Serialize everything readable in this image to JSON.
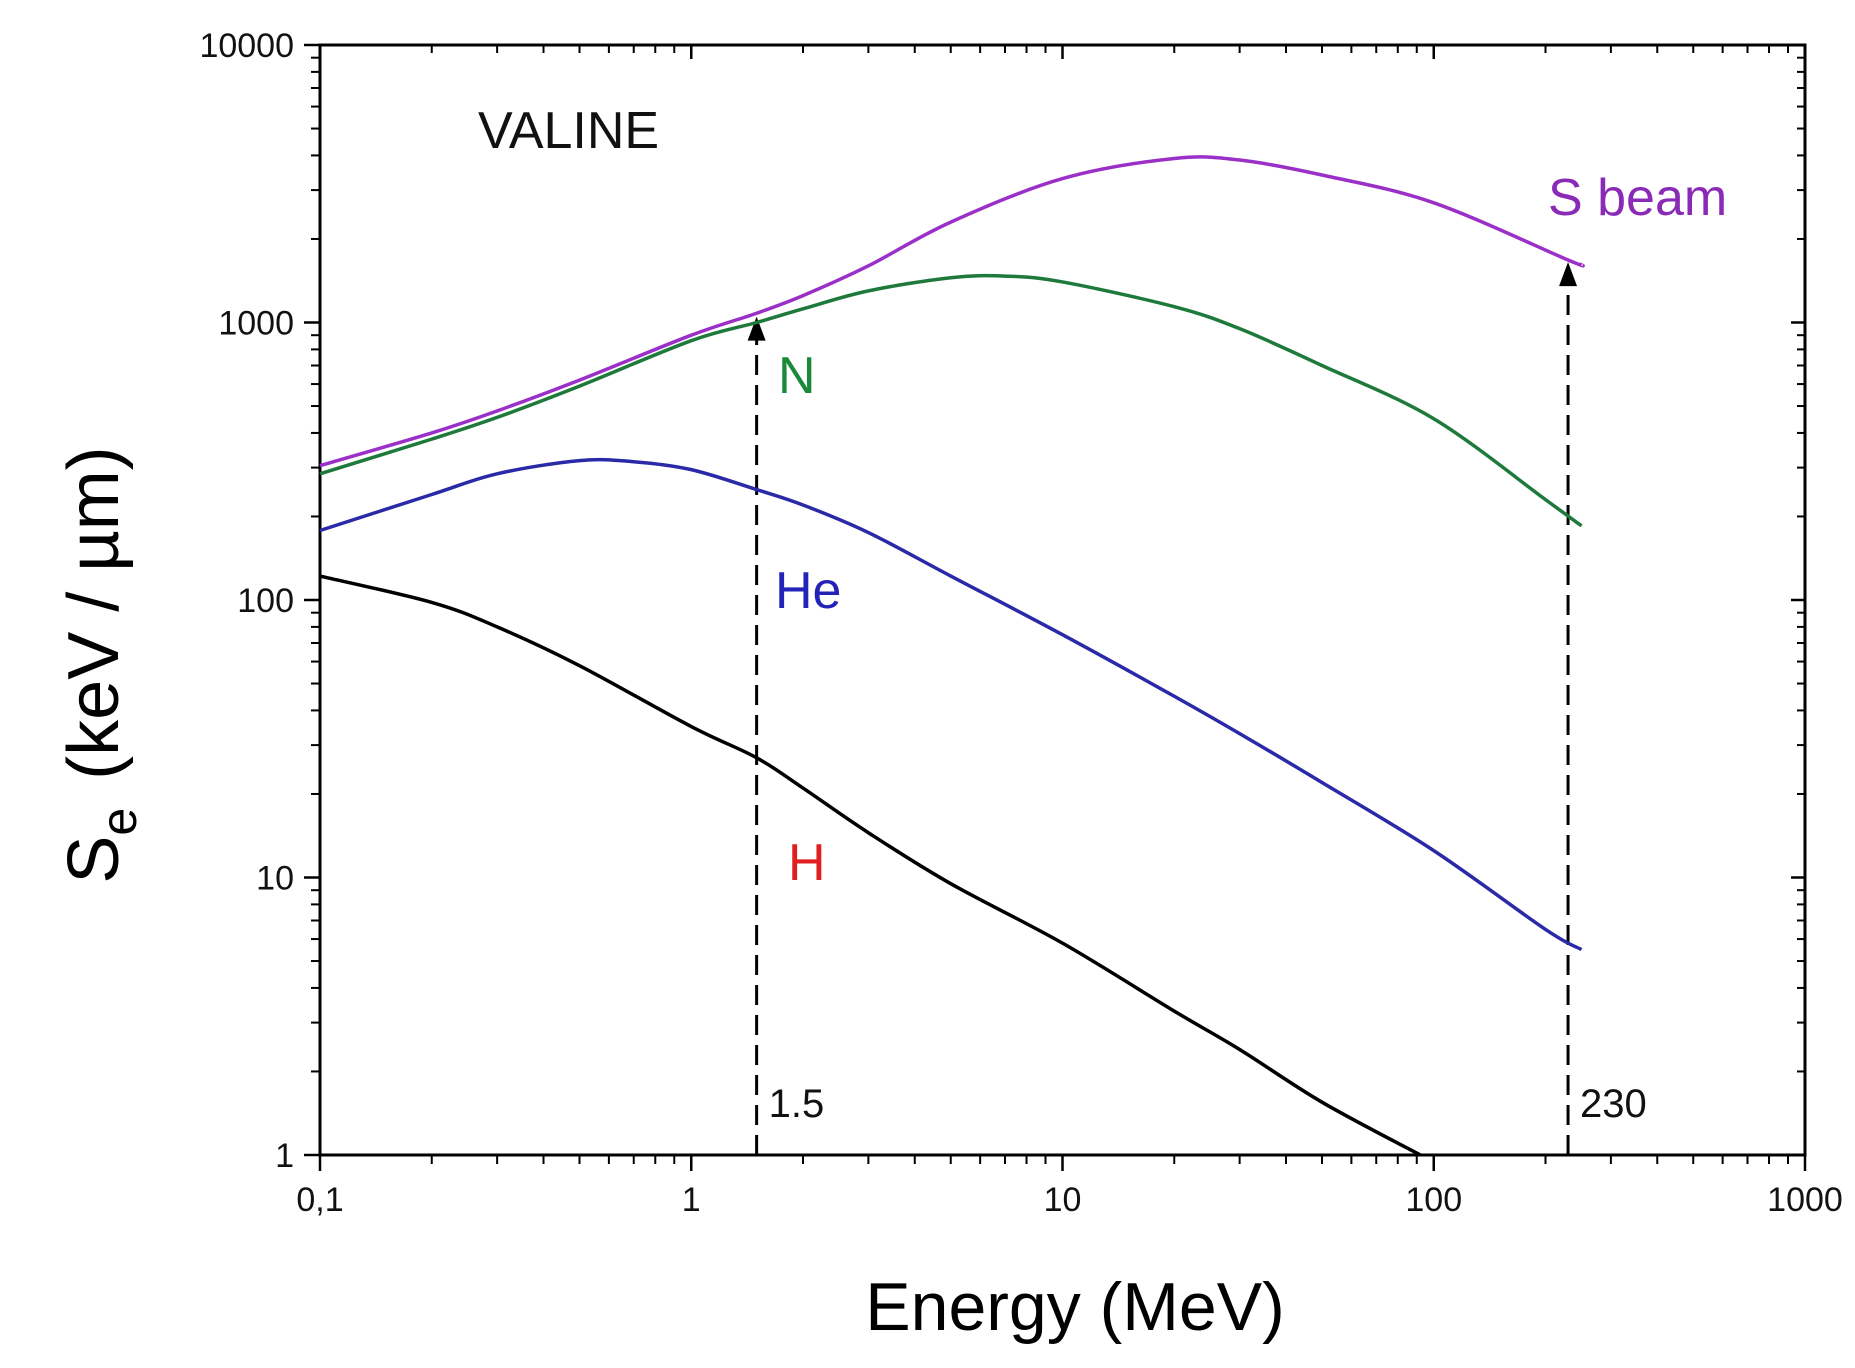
{
  "chart_data": {
    "type": "line",
    "title": "VALINE",
    "xlabel": "Energy (MeV)",
    "ylabel_main": "S",
    "ylabel_sub": "e",
    "ylabel_unit": "(keV / µm)",
    "xscale": "log",
    "yscale": "log",
    "xlim": [
      0.1,
      1000
    ],
    "ylim": [
      1,
      10000
    ],
    "xticks": [
      {
        "value": 0.1,
        "label": "0,1"
      },
      {
        "value": 1,
        "label": "1"
      },
      {
        "value": 10,
        "label": "10"
      },
      {
        "value": 100,
        "label": "100"
      },
      {
        "value": 1000,
        "label": "1000"
      }
    ],
    "yticks": [
      {
        "value": 1,
        "label": "1"
      },
      {
        "value": 10,
        "label": "10"
      },
      {
        "value": 100,
        "label": "100"
      },
      {
        "value": 1000,
        "label": "1000"
      },
      {
        "value": 10000,
        "label": "10000"
      }
    ],
    "series": [
      {
        "name": "S beam",
        "color": "#9b30c8",
        "label_color": "#8a2bb8",
        "points": [
          [
            0.1,
            305
          ],
          [
            0.2,
            400
          ],
          [
            0.3,
            480
          ],
          [
            0.5,
            620
          ],
          [
            1,
            900
          ],
          [
            1.5,
            1080
          ],
          [
            2,
            1250
          ],
          [
            3,
            1600
          ],
          [
            5,
            2300
          ],
          [
            10,
            3300
          ],
          [
            20,
            3900
          ],
          [
            30,
            3850
          ],
          [
            50,
            3400
          ],
          [
            100,
            2700
          ],
          [
            230,
            1680
          ],
          [
            250,
            1620
          ]
        ]
      },
      {
        "name": "N",
        "color": "#1e7a3a",
        "label_color": "#1a8a3a",
        "points": [
          [
            0.1,
            285
          ],
          [
            0.2,
            380
          ],
          [
            0.3,
            455
          ],
          [
            0.5,
            590
          ],
          [
            1,
            860
          ],
          [
            1.5,
            1000
          ],
          [
            2,
            1120
          ],
          [
            3,
            1300
          ],
          [
            5,
            1450
          ],
          [
            7,
            1470
          ],
          [
            10,
            1400
          ],
          [
            20,
            1140
          ],
          [
            30,
            950
          ],
          [
            50,
            700
          ],
          [
            100,
            450
          ],
          [
            200,
            230
          ],
          [
            250,
            185
          ]
        ]
      },
      {
        "name": "He",
        "color": "#2a2aa8",
        "label_color": "#2323b8",
        "points": [
          [
            0.1,
            178
          ],
          [
            0.2,
            240
          ],
          [
            0.3,
            285
          ],
          [
            0.5,
            318
          ],
          [
            0.7,
            315
          ],
          [
            1,
            295
          ],
          [
            1.5,
            250
          ],
          [
            2,
            220
          ],
          [
            3,
            175
          ],
          [
            5,
            122
          ],
          [
            10,
            75
          ],
          [
            20,
            45
          ],
          [
            30,
            33
          ],
          [
            50,
            22
          ],
          [
            100,
            12.5
          ],
          [
            200,
            6.5
          ],
          [
            250,
            5.5
          ]
        ]
      },
      {
        "name": "H",
        "color": "#000000",
        "label_color": "#e02020",
        "points": [
          [
            0.1,
            122
          ],
          [
            0.2,
            98
          ],
          [
            0.3,
            80
          ],
          [
            0.5,
            58
          ],
          [
            1,
            35
          ],
          [
            1.5,
            27
          ],
          [
            2,
            21
          ],
          [
            3,
            14.5
          ],
          [
            5,
            9.5
          ],
          [
            10,
            5.8
          ],
          [
            20,
            3.3
          ],
          [
            30,
            2.4
          ],
          [
            50,
            1.55
          ],
          [
            92,
            1.0
          ]
        ]
      }
    ],
    "markers": [
      {
        "x": 1.5,
        "y_top": 1050,
        "label": "1.5"
      },
      {
        "x": 230,
        "y_top": 1650,
        "label": "230"
      }
    ]
  }
}
